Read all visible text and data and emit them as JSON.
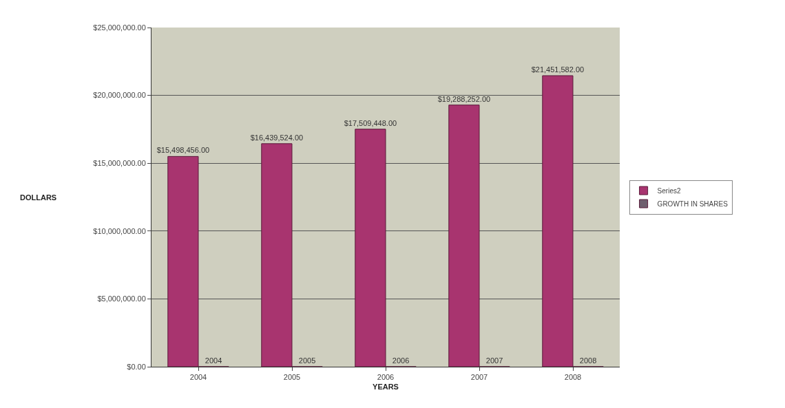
{
  "chart_data": {
    "type": "bar",
    "xlabel": "YEARS",
    "ylabel": "DOLLARS",
    "categories": [
      "2004",
      "2005",
      "2006",
      "2007",
      "2008"
    ],
    "series": [
      {
        "name": "Series2",
        "color": "#a8346f",
        "values": [
          15498456,
          16439524,
          17509448,
          19288252,
          21451582
        ],
        "value_labels": [
          "$15,498,456.00",
          "$16,439,524.00",
          "$17,509,448.00",
          "$19,288,252.00",
          "$21,451,582.00"
        ]
      },
      {
        "name": "GROWTH IN SHARES",
        "color": "#6e5f6e",
        "values": [
          2004,
          2005,
          2006,
          2007,
          2008
        ],
        "value_labels": [
          "2004",
          "2005",
          "2006",
          "2007",
          "2008"
        ]
      }
    ],
    "ylim": [
      0,
      25000000
    ],
    "yticks": [
      {
        "value": 0,
        "label": "$0.00"
      },
      {
        "value": 5000000,
        "label": "$5,000,000.00"
      },
      {
        "value": 10000000,
        "label": "$10,000,000.00"
      },
      {
        "value": 15000000,
        "label": "$15,000,000.00"
      },
      {
        "value": 20000000,
        "label": "$20,000,000.00"
      },
      {
        "value": 25000000,
        "label": "$25,000,000.00"
      }
    ],
    "grid": "y",
    "legend": "right"
  }
}
